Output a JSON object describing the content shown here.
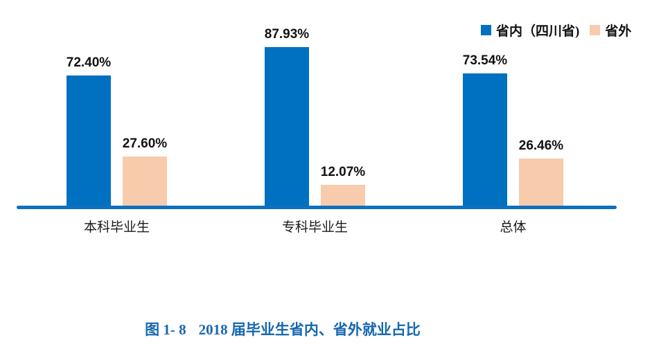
{
  "chart_data": {
    "type": "bar",
    "title": "图 1- 8  2018 届毕业生省内、省外就业占比",
    "categories": [
      "本科毕业生",
      "专科毕业生",
      "总体"
    ],
    "series": [
      {
        "name": "省内（四川省)",
        "color": "#0070C0",
        "values": [
          72.4,
          87.93,
          73.54
        ],
        "labels": [
          "72.40%",
          "87.93%",
          "73.54%"
        ]
      },
      {
        "name": "省外",
        "color": "#F8CBAD",
        "values": [
          27.6,
          12.07,
          26.46
        ],
        "labels": [
          "27.60%",
          "12.07%",
          "26.46%"
        ]
      }
    ],
    "ylim": [
      0,
      100
    ],
    "grid": false,
    "y_axis_visible": false,
    "legend_position": "top-right",
    "axis_line_color": "#0E70BE"
  },
  "caption": {
    "figure_label": "图 1- 8",
    "text": "2018 届毕业生省内、省外就业占比",
    "color": "#1667B1"
  }
}
